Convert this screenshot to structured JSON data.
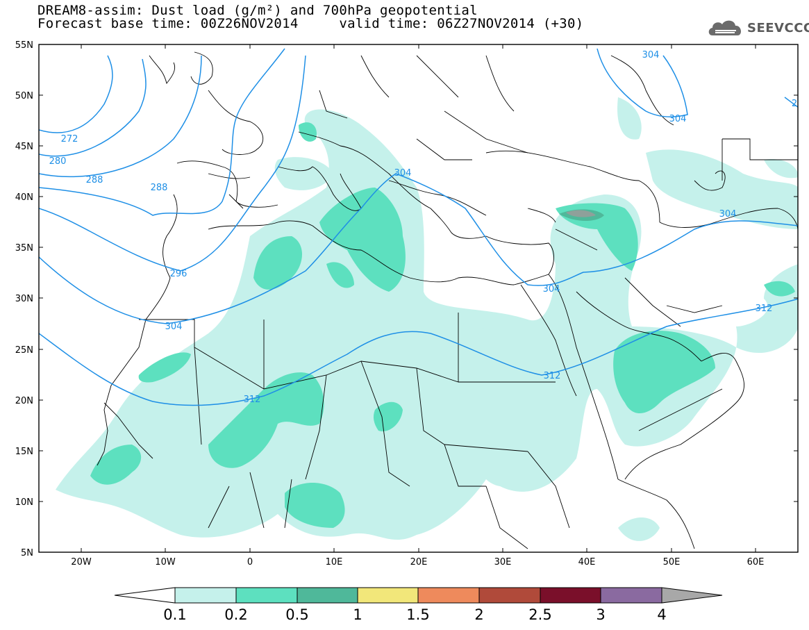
{
  "header": {
    "title_line1": "DREAM8-assim: Dust load (g/m²) and 700hPa geopotential",
    "title_line2": "Forecast base time: 00Z26NOV2014     valid time: 06Z27NOV2014 (+30)",
    "logo_text": "SEEVCCC"
  },
  "map": {
    "lat_labels": [
      "55N",
      "50N",
      "45N",
      "40N",
      "35N",
      "30N",
      "25N",
      "20N",
      "15N",
      "10N",
      "5N"
    ],
    "lon_labels": [
      "20W",
      "10W",
      "0",
      "10E",
      "20E",
      "30E",
      "40E",
      "50E",
      "60E"
    ],
    "contour_labels": [
      "272",
      "280",
      "288",
      "288",
      "296",
      "304",
      "304",
      "304",
      "304",
      "304",
      "304",
      "312",
      "312",
      "312",
      "2"
    ],
    "colors": {
      "coast": "#000000",
      "contour": "#1e8fe6",
      "dust_light": "#c5f1eb",
      "dust_mid": "#5de0bf",
      "dust_dark": "#4fb89a",
      "dust_peak": "#8fa09a"
    }
  },
  "colorbar": {
    "tick_labels": [
      "0.1",
      "0.2",
      "0.5",
      "1",
      "1.5",
      "2",
      "2.5",
      "3",
      "4"
    ],
    "colors": [
      "#ffffff",
      "#c5f1eb",
      "#5de0bf",
      "#4fb89a",
      "#f2e77a",
      "#ee8a5c",
      "#b04a3a",
      "#7a0f2a",
      "#8a6aa0",
      "#a8a8a8"
    ]
  }
}
